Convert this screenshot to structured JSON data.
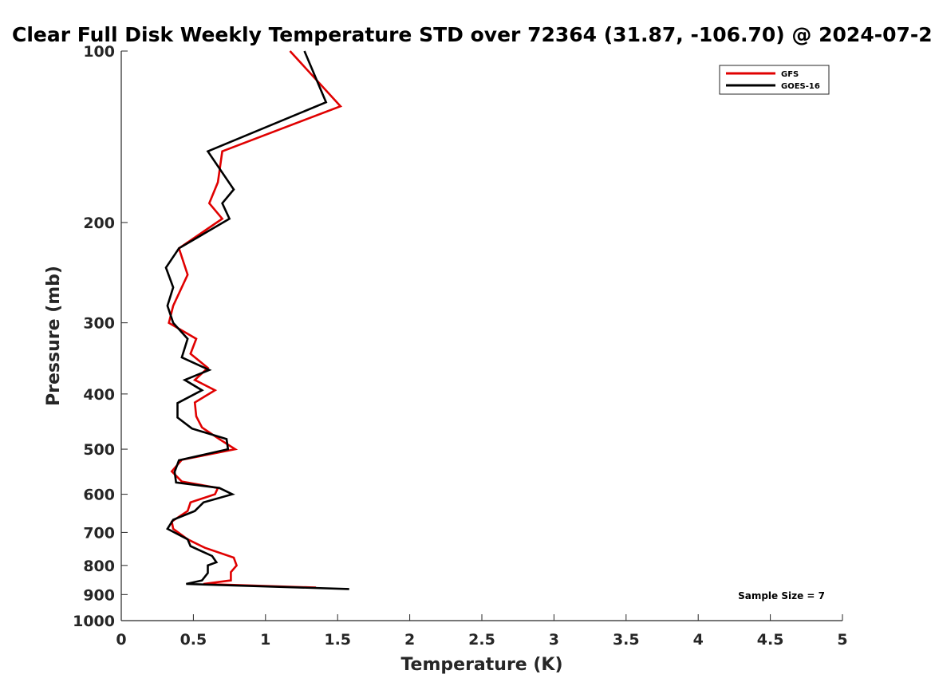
{
  "chart_data": {
    "type": "line",
    "title": "Clear Full Disk Weekly Temperature STD over 72364 (31.87, -106.70) @ 2024-07-2",
    "xlabel": "Temperature (K)",
    "ylabel": "Pressure (mb)",
    "xlim": [
      0,
      5
    ],
    "ylim": [
      1000,
      100
    ],
    "y_scale": "log",
    "y_reversed": true,
    "x_ticks": [
      "0",
      "0.5",
      "1",
      "1.5",
      "2",
      "2.5",
      "3",
      "3.5",
      "4",
      "4.5",
      "5"
    ],
    "y_ticks": [
      "100",
      "200",
      "300",
      "400",
      "500",
      "600",
      "700",
      "800",
      "900",
      "1000"
    ],
    "grid": false,
    "legend": {
      "position": "top-right",
      "entries": [
        "GFS",
        "GOES-16"
      ]
    },
    "annotation": "Sample Size = 7",
    "series": [
      {
        "name": "GFS",
        "color": "#e00000",
        "points": [
          [
            1.17,
            100
          ],
          [
            1.52,
            125
          ],
          [
            0.7,
            150
          ],
          [
            0.67,
            170
          ],
          [
            0.61,
            185
          ],
          [
            0.7,
            197
          ],
          [
            0.4,
            222
          ],
          [
            0.46,
            247
          ],
          [
            0.36,
            280
          ],
          [
            0.33,
            300
          ],
          [
            0.52,
            320
          ],
          [
            0.48,
            340
          ],
          [
            0.6,
            360
          ],
          [
            0.51,
            378
          ],
          [
            0.65,
            394
          ],
          [
            0.51,
            414
          ],
          [
            0.52,
            438
          ],
          [
            0.56,
            458
          ],
          [
            0.68,
            480
          ],
          [
            0.79,
            500
          ],
          [
            0.42,
            522
          ],
          [
            0.35,
            547
          ],
          [
            0.42,
            570
          ],
          [
            0.67,
            585
          ],
          [
            0.65,
            600
          ],
          [
            0.48,
            620
          ],
          [
            0.46,
            642
          ],
          [
            0.35,
            670
          ],
          [
            0.36,
            690
          ],
          [
            0.46,
            720
          ],
          [
            0.58,
            745
          ],
          [
            0.78,
            775
          ],
          [
            0.8,
            800
          ],
          [
            0.76,
            822
          ],
          [
            0.76,
            850
          ],
          [
            0.57,
            862
          ],
          [
            1.35,
            875
          ]
        ]
      },
      {
        "name": "GOES-16",
        "color": "#000000",
        "points": [
          [
            1.27,
            100
          ],
          [
            1.42,
            123
          ],
          [
            0.6,
            150
          ],
          [
            0.78,
            175
          ],
          [
            0.7,
            185
          ],
          [
            0.75,
            197
          ],
          [
            0.4,
            222
          ],
          [
            0.31,
            240
          ],
          [
            0.36,
            260
          ],
          [
            0.32,
            280
          ],
          [
            0.36,
            300
          ],
          [
            0.46,
            320
          ],
          [
            0.42,
            345
          ],
          [
            0.61,
            363
          ],
          [
            0.44,
            378
          ],
          [
            0.56,
            394
          ],
          [
            0.39,
            415
          ],
          [
            0.39,
            440
          ],
          [
            0.49,
            460
          ],
          [
            0.73,
            480
          ],
          [
            0.74,
            500
          ],
          [
            0.4,
            523
          ],
          [
            0.37,
            548
          ],
          [
            0.38,
            572
          ],
          [
            0.68,
            585
          ],
          [
            0.77,
            600
          ],
          [
            0.57,
            620
          ],
          [
            0.51,
            642
          ],
          [
            0.36,
            665
          ],
          [
            0.32,
            690
          ],
          [
            0.46,
            720
          ],
          [
            0.48,
            740
          ],
          [
            0.63,
            770
          ],
          [
            0.66,
            790
          ],
          [
            0.6,
            800
          ],
          [
            0.6,
            825
          ],
          [
            0.56,
            850
          ],
          [
            0.45,
            862
          ],
          [
            1.58,
            880
          ]
        ]
      }
    ]
  }
}
